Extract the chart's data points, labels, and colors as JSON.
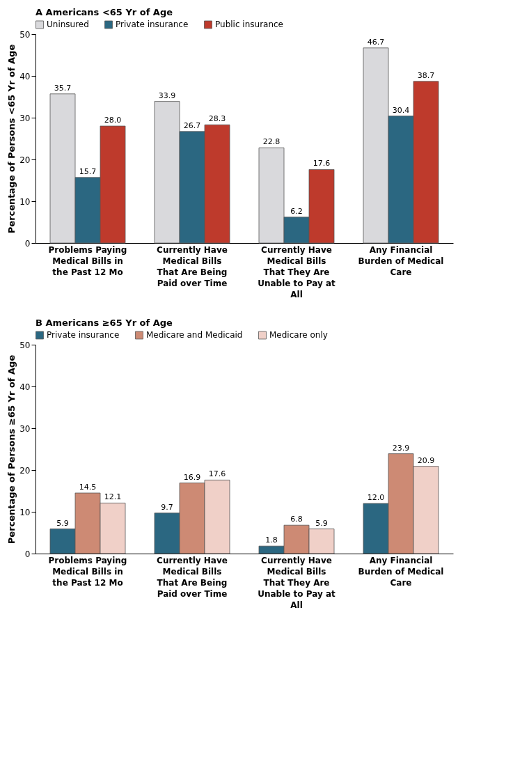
{
  "chart_data": [
    {
      "type": "bar",
      "title": "A  Americans <65 Yr of Age",
      "ylabel": "Percentage of Persons <65 Yr of Age",
      "categories": [
        "Problems Paying Medical Bills in the Past 12 Mo",
        "Currently Have Medical Bills That Are Being Paid over Time",
        "Currently Have Medical Bills That They Are Unable to Pay at All",
        "Any Financial Burden of Medical Care"
      ],
      "series": [
        {
          "name": "Uninsured",
          "color": "#d9d9dc",
          "values": [
            35.7,
            33.9,
            22.8,
            46.7
          ],
          "value_labels": [
            "35.7",
            "33.9",
            "22.8",
            "46.7"
          ]
        },
        {
          "name": "Private insurance",
          "color": "#2b6781",
          "values": [
            15.7,
            26.7,
            6.2,
            30.4
          ],
          "value_labels": [
            "15.7",
            "26.7",
            "6.2",
            "30.4"
          ]
        },
        {
          "name": "Public insurance",
          "color": "#be3a2c",
          "values": [
            28.0,
            28.3,
            17.6,
            38.7
          ],
          "value_labels": [
            "28.0",
            "28.3",
            "17.6",
            "38.7"
          ]
        }
      ],
      "ylim": [
        0,
        50
      ],
      "yticks": [
        0,
        10,
        20,
        30,
        40,
        50
      ],
      "grid": false,
      "legend": "top"
    },
    {
      "type": "bar",
      "title": "B  Americans ≥65 Yr of Age",
      "ylabel": "Percentage of Persons ≥65 Yr of Age",
      "categories": [
        "Problems Paying Medical Bills in the Past 12 Mo",
        "Currently Have Medical Bills That Are Being Paid over Time",
        "Currently Have Medical Bills That They Are Unable to Pay at All",
        "Any Financial Burden of Medical Care"
      ],
      "series": [
        {
          "name": "Private insurance",
          "color": "#2b6781",
          "values": [
            5.9,
            9.7,
            1.8,
            12.0
          ],
          "value_labels": [
            "5.9",
            "9.7",
            "1.8",
            "12.0"
          ]
        },
        {
          "name": "Medicare and Medicaid",
          "color": "#cd8a74",
          "values": [
            14.5,
            16.9,
            6.8,
            23.9
          ],
          "value_labels": [
            "14.5",
            "16.9",
            "6.8",
            "23.9"
          ]
        },
        {
          "name": "Medicare only",
          "color": "#f0d0c8",
          "values": [
            12.1,
            17.6,
            5.9,
            20.9
          ],
          "value_labels": [
            "12.1",
            "17.6",
            "5.9",
            "20.9"
          ]
        }
      ],
      "ylim": [
        0,
        50
      ],
      "yticks": [
        0,
        10,
        20,
        30,
        40,
        50
      ],
      "grid": false,
      "legend": "top"
    }
  ]
}
